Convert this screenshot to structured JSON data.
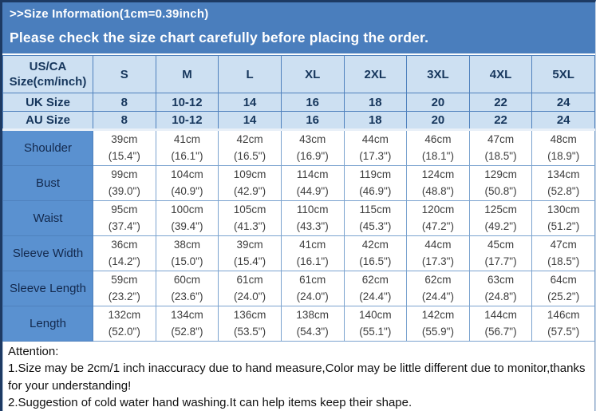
{
  "banner": {
    "title": ">>Size Information(1cm=0.39inch)",
    "subtitle": "Please check the size chart carefully before placing the order."
  },
  "colors": {
    "banner_bg": "#4a7ebd",
    "header_cell_bg": "#cde0f2",
    "row_label_bg": "#5a91d0",
    "grid_border": "#4f81bd",
    "dark_edge": "#1d3a63",
    "header_text": "#16365c",
    "cell_text": "#3d3d3d"
  },
  "table": {
    "corner_header": "US/CA Size(cm/inch)",
    "size_columns": [
      "S",
      "M",
      "L",
      "XL",
      "2XL",
      "3XL",
      "4XL",
      "5XL"
    ],
    "uk_row": {
      "label": "UK Size",
      "values": [
        "8",
        "10-12",
        "14",
        "16",
        "18",
        "20",
        "22",
        "24"
      ]
    },
    "au_row": {
      "label": "AU Size",
      "values": [
        "8",
        "10-12",
        "14",
        "16",
        "18",
        "20",
        "22",
        "24"
      ]
    },
    "measurement_rows": [
      {
        "label": "Shoulder",
        "cm": [
          "39cm",
          "41cm",
          "42cm",
          "43cm",
          "44cm",
          "46cm",
          "47cm",
          "48cm"
        ],
        "inch": [
          "(15.4\")",
          "(16.1\")",
          "(16.5\")",
          "(16.9\")",
          "(17.3\")",
          "(18.1\")",
          "(18.5\")",
          "(18.9\")"
        ]
      },
      {
        "label": "Bust",
        "cm": [
          "99cm",
          "104cm",
          "109cm",
          "114cm",
          "119cm",
          "124cm",
          "129cm",
          "134cm"
        ],
        "inch": [
          "(39.0\")",
          "(40.9\")",
          "(42.9\")",
          "(44.9\")",
          "(46.9\")",
          "(48.8\")",
          "(50.8\")",
          "(52.8\")"
        ]
      },
      {
        "label": "Waist",
        "cm": [
          "95cm",
          "100cm",
          "105cm",
          "110cm",
          "115cm",
          "120cm",
          "125cm",
          "130cm"
        ],
        "inch": [
          "(37.4\")",
          "(39.4\")",
          "(41.3\")",
          "(43.3\")",
          "(45.3\")",
          "(47.2\")",
          "(49.2\")",
          "(51.2\")"
        ]
      },
      {
        "label": "Sleeve Width",
        "cm": [
          "36cm",
          "38cm",
          "39cm",
          "41cm",
          "42cm",
          "44cm",
          "45cm",
          "47cm"
        ],
        "inch": [
          "(14.2\")",
          "(15.0\")",
          "(15.4\")",
          "(16.1\")",
          "(16.5\")",
          "(17.3\")",
          "(17.7\")",
          "(18.5\")"
        ]
      },
      {
        "label": "Sleeve Length",
        "cm": [
          "59cm",
          "60cm",
          "61cm",
          "61cm",
          "62cm",
          "62cm",
          "63cm",
          "64cm"
        ],
        "inch": [
          "(23.2\")",
          "(23.6\")",
          "(24.0\")",
          "(24.0\")",
          "(24.4\")",
          "(24.4\")",
          "(24.8\")",
          "(25.2\")"
        ]
      },
      {
        "label": "Length",
        "cm": [
          "132cm",
          "134cm",
          "136cm",
          "138cm",
          "140cm",
          "142cm",
          "144cm",
          "146cm"
        ],
        "inch": [
          "(52.0\")",
          "(52.8\")",
          "(53.5\")",
          "(54.3\")",
          "(55.1\")",
          "(55.9\")",
          "(56.7\")",
          "(57.5\")"
        ]
      }
    ]
  },
  "attention": {
    "heading": "Attention:",
    "notes": [
      "1.Size may be 2cm/1 inch inaccuracy due to hand measure,Color may be little different due to monitor,thanks for your understanding!",
      "2.Suggestion of cold water hand washing.It can help items keep their shape."
    ]
  },
  "chart_data": {
    "type": "table",
    "title": ">>Size Information(1cm=0.39inch)",
    "subtitle": "Please check the size chart carefully before placing the order.",
    "columns": [
      "US/CA Size(cm/inch)",
      "S",
      "M",
      "L",
      "XL",
      "2XL",
      "3XL",
      "4XL",
      "5XL"
    ],
    "rows": [
      [
        "UK Size",
        "8",
        "10-12",
        "14",
        "16",
        "18",
        "20",
        "22",
        "24"
      ],
      [
        "AU Size",
        "8",
        "10-12",
        "14",
        "16",
        "18",
        "20",
        "22",
        "24"
      ],
      [
        "Shoulder",
        "39cm (15.4\")",
        "41cm (16.1\")",
        "42cm (16.5\")",
        "43cm (16.9\")",
        "44cm (17.3\")",
        "46cm (18.1\")",
        "47cm (18.5\")",
        "48cm (18.9\")"
      ],
      [
        "Bust",
        "99cm (39.0\")",
        "104cm (40.9\")",
        "109cm (42.9\")",
        "114cm (44.9\")",
        "119cm (46.9\")",
        "124cm (48.8\")",
        "129cm (50.8\")",
        "134cm (52.8\")"
      ],
      [
        "Waist",
        "95cm (37.4\")",
        "100cm (39.4\")",
        "105cm (41.3\")",
        "110cm (43.3\")",
        "115cm (45.3\")",
        "120cm (47.2\")",
        "125cm (49.2\")",
        "130cm (51.2\")"
      ],
      [
        "Sleeve Width",
        "36cm (14.2\")",
        "38cm (15.0\")",
        "39cm (15.4\")",
        "41cm (16.1\")",
        "42cm (16.5\")",
        "44cm (17.3\")",
        "45cm (17.7\")",
        "47cm (18.5\")"
      ],
      [
        "Sleeve Length",
        "59cm (23.2\")",
        "60cm (23.6\")",
        "61cm (24.0\")",
        "61cm (24.0\")",
        "62cm (24.4\")",
        "62cm (24.4\")",
        "63cm (24.8\")",
        "64cm (25.2\")"
      ],
      [
        "Length",
        "132cm (52.0\")",
        "134cm (52.8\")",
        "136cm (53.5\")",
        "138cm (54.3\")",
        "140cm (55.1\")",
        "142cm (55.9\")",
        "144cm (56.7\")",
        "146cm (57.5\")"
      ]
    ]
  }
}
